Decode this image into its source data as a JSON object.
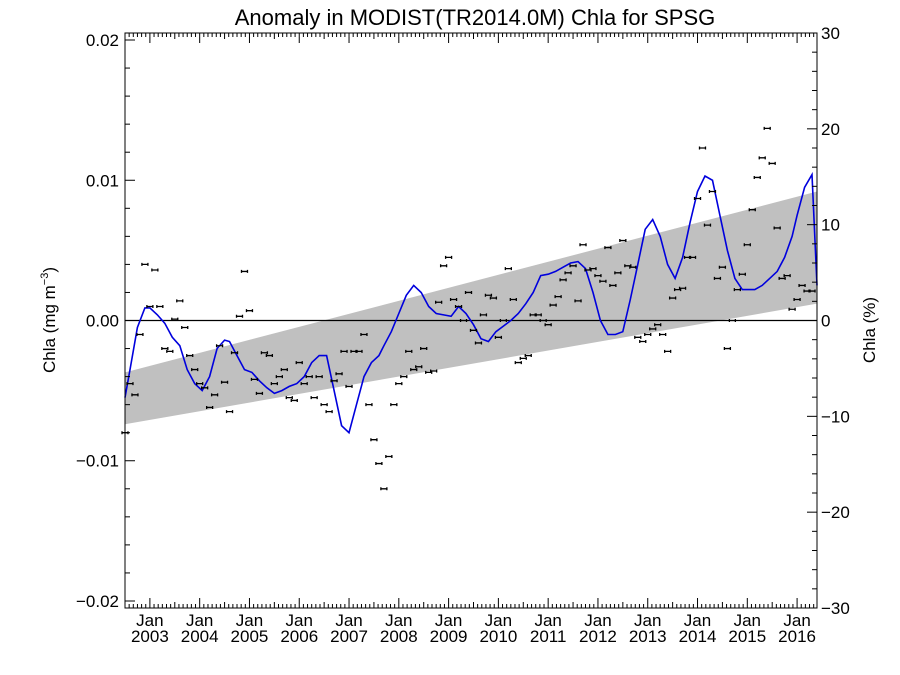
{
  "chart_data": {
    "type": "scatter",
    "title": "Anomaly in MODIST(TR2014.0M) Chla for SPSG",
    "ylabel_left_base": "Chla (mg m",
    "ylabel_left_exp": "−3",
    "ylabel_left_close": ")",
    "ylabel_right": "Chla (%)",
    "xlim": [
      2002.5,
      2016.4
    ],
    "ylim": [
      -0.0205,
      0.0205
    ],
    "ylim_right": [
      -30,
      30
    ],
    "x_tick_years": [
      2003,
      2004,
      2005,
      2006,
      2007,
      2008,
      2009,
      2010,
      2011,
      2012,
      2013,
      2014,
      2015,
      2016
    ],
    "x_tick_month_label": "Jan",
    "y_ticks": [
      -0.02,
      -0.01,
      0.0,
      0.01,
      0.02
    ],
    "y_tick_labels": [
      "−0.02",
      "−0.01",
      "0.00",
      "0.01",
      "0.02"
    ],
    "y_right_ticks": [
      -30,
      -20,
      -10,
      0,
      10,
      20,
      30
    ],
    "y_right_tick_labels": [
      "−30",
      "−20",
      "−10",
      "0",
      "10",
      "20",
      "30"
    ],
    "trend_band": {
      "x": [
        2002.5,
        2016.4
      ],
      "lower": [
        -0.0074,
        0.0012
      ],
      "upper": [
        -0.0037,
        0.0092
      ],
      "color": "#c0c0c0"
    },
    "zero_line": 0.0,
    "smooth_color": "#0000dd",
    "smooth_line": {
      "x": [
        2002.5,
        2002.6,
        2002.75,
        2002.9,
        2003.0,
        2003.15,
        2003.3,
        2003.45,
        2003.6,
        2003.75,
        2003.9,
        2004.05,
        2004.2,
        2004.35,
        2004.5,
        2004.6,
        2004.75,
        2004.9,
        2005.05,
        2005.2,
        2005.35,
        2005.5,
        2005.65,
        2005.8,
        2005.95,
        2006.1,
        2006.25,
        2006.4,
        2006.55,
        2006.7,
        2006.85,
        2007.0,
        2007.15,
        2007.3,
        2007.45,
        2007.6,
        2007.7,
        2007.85,
        2008.0,
        2008.15,
        2008.3,
        2008.45,
        2008.6,
        2008.75,
        2008.9,
        2009.05,
        2009.2,
        2009.35,
        2009.5,
        2009.65,
        2009.8,
        2009.95,
        2010.1,
        2010.25,
        2010.4,
        2010.55,
        2010.7,
        2010.85,
        2011.0,
        2011.15,
        2011.3,
        2011.45,
        2011.6,
        2011.75,
        2011.9,
        2012.05,
        2012.2,
        2012.35,
        2012.5,
        2012.65,
        2012.8,
        2012.95,
        2013.1,
        2013.25,
        2013.4,
        2013.55,
        2013.7,
        2013.85,
        2014.0,
        2014.15,
        2014.3,
        2014.45,
        2014.6,
        2014.75,
        2014.9,
        2015.0,
        2015.15,
        2015.3,
        2015.45,
        2015.6,
        2015.75,
        2015.9,
        2016.0,
        2016.15,
        2016.3,
        2016.4
      ],
      "y": [
        -0.0055,
        -0.0035,
        -0.0005,
        0.0009,
        0.0009,
        0.0004,
        -0.0002,
        -0.0012,
        -0.0018,
        -0.0035,
        -0.0045,
        -0.005,
        -0.004,
        -0.002,
        -0.0014,
        -0.0015,
        -0.0025,
        -0.0035,
        -0.0037,
        -0.0043,
        -0.0048,
        -0.0052,
        -0.005,
        -0.0047,
        -0.0045,
        -0.004,
        -0.003,
        -0.0025,
        -0.0025,
        -0.005,
        -0.0075,
        -0.008,
        -0.006,
        -0.004,
        -0.003,
        -0.0025,
        -0.0018,
        -0.0008,
        0.0005,
        0.0018,
        0.0025,
        0.002,
        0.001,
        0.0005,
        0.0004,
        0.0003,
        0.001,
        0.0005,
        -0.0003,
        -0.0013,
        -0.0015,
        -0.0008,
        -0.0004,
        0.0,
        0.0005,
        0.0012,
        0.002,
        0.0032,
        0.0033,
        0.0035,
        0.0038,
        0.0041,
        0.0042,
        0.0037,
        0.002,
        0.0,
        -0.001,
        -0.001,
        -0.0008,
        0.0015,
        0.004,
        0.0065,
        0.0072,
        0.006,
        0.004,
        0.003,
        0.0045,
        0.007,
        0.0092,
        0.0103,
        0.01,
        0.0075,
        0.005,
        0.003,
        0.0022,
        0.0022,
        0.0022,
        0.0025,
        0.003,
        0.0035,
        0.0045,
        0.006,
        0.0075,
        0.0095,
        0.0104,
        0.0025
      ]
    },
    "points": {
      "x": [
        2002.5,
        2002.6,
        2002.7,
        2002.8,
        2002.9,
        2003.0,
        2003.1,
        2003.2,
        2003.3,
        2003.4,
        2003.5,
        2003.6,
        2003.7,
        2003.8,
        2003.9,
        2004.0,
        2004.1,
        2004.2,
        2004.3,
        2004.4,
        2004.5,
        2004.6,
        2004.7,
        2004.8,
        2004.9,
        2005.0,
        2005.1,
        2005.2,
        2005.3,
        2005.4,
        2005.5,
        2005.6,
        2005.7,
        2005.8,
        2005.9,
        2006.0,
        2006.1,
        2006.2,
        2006.3,
        2006.4,
        2006.5,
        2006.6,
        2006.7,
        2006.8,
        2006.9,
        2007.0,
        2007.1,
        2007.2,
        2007.3,
        2007.4,
        2007.5,
        2007.6,
        2007.7,
        2007.8,
        2007.9,
        2008.0,
        2008.1,
        2008.2,
        2008.3,
        2008.4,
        2008.5,
        2008.6,
        2008.7,
        2008.8,
        2008.9,
        2009.0,
        2009.1,
        2009.2,
        2009.3,
        2009.4,
        2009.5,
        2009.6,
        2009.7,
        2009.8,
        2009.9,
        2010.0,
        2010.1,
        2010.2,
        2010.3,
        2010.4,
        2010.5,
        2010.6,
        2010.7,
        2010.8,
        2010.9,
        2011.0,
        2011.1,
        2011.2,
        2011.3,
        2011.4,
        2011.5,
        2011.6,
        2011.7,
        2011.8,
        2011.9,
        2012.0,
        2012.1,
        2012.2,
        2012.3,
        2012.4,
        2012.5,
        2012.6,
        2012.7,
        2012.8,
        2012.9,
        2013.0,
        2013.1,
        2013.2,
        2013.3,
        2013.4,
        2013.5,
        2013.6,
        2013.7,
        2013.8,
        2013.9,
        2014.0,
        2014.1,
        2014.2,
        2014.3,
        2014.4,
        2014.5,
        2014.6,
        2014.7,
        2014.8,
        2014.9,
        2015.0,
        2015.1,
        2015.2,
        2015.3,
        2015.4,
        2015.5,
        2015.6,
        2015.7,
        2015.8,
        2015.9,
        2016.0,
        2016.1,
        2016.2,
        2016.3
      ],
      "y": [
        -0.008,
        -0.0045,
        -0.0053,
        -0.001,
        0.004,
        0.001,
        0.0036,
        0.001,
        -0.002,
        -0.0022,
        0.0001,
        0.0014,
        -0.0005,
        -0.0025,
        -0.0035,
        -0.0045,
        -0.0048,
        -0.0062,
        -0.0053,
        -0.0018,
        -0.0044,
        -0.0065,
        -0.0023,
        0.0003,
        0.0035,
        0.0007,
        -0.0042,
        -0.0052,
        -0.0023,
        -0.0025,
        -0.0045,
        -0.004,
        -0.0035,
        -0.0055,
        -0.0057,
        -0.003,
        -0.0045,
        -0.004,
        -0.0055,
        -0.004,
        -0.006,
        -0.0065,
        -0.0043,
        -0.0038,
        -0.0022,
        -0.0047,
        -0.0022,
        -0.0022,
        -0.001,
        -0.006,
        -0.0085,
        -0.0102,
        -0.012,
        -0.0097,
        -0.006,
        -0.0045,
        -0.004,
        -0.0022,
        -0.0035,
        -0.0033,
        -0.002,
        -0.0037,
        -0.0036,
        0.0013,
        0.0039,
        0.0045,
        0.0015,
        0.001,
        0.0,
        0.002,
        -0.0007,
        -0.0016,
        0.0004,
        0.0018,
        0.0016,
        -0.0012,
        0.0,
        0.0037,
        0.0015,
        -0.003,
        -0.0027,
        -0.0025,
        0.0004,
        0.0004,
        0.0,
        -0.0003,
        0.0011,
        0.0017,
        0.0029,
        0.0034,
        0.0039,
        0.0014,
        0.0054,
        0.0036,
        0.0037,
        0.0032,
        0.0028,
        0.0052,
        0.0025,
        0.0034,
        0.0057,
        0.0039,
        0.0038,
        -0.0012,
        -0.0015,
        -0.001,
        -0.0006,
        -0.0003,
        -0.001,
        -0.0022,
        0.0016,
        0.0022,
        0.0023,
        0.0045,
        0.0045,
        0.0087,
        0.0123,
        0.0068,
        0.0092,
        0.003,
        0.0038,
        -0.002,
        0.0,
        0.0022,
        0.0033,
        0.0054,
        0.0079,
        0.0102,
        0.0116,
        0.0137,
        0.0112,
        0.0066,
        0.003,
        0.0032,
        0.0008,
        0.0015,
        0.0025,
        0.0021,
        0.0021
      ]
    }
  }
}
